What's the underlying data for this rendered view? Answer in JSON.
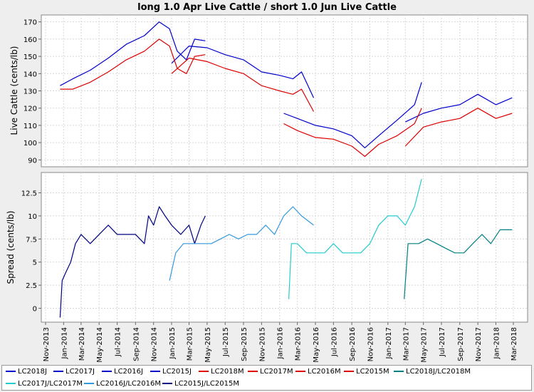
{
  "chart_data": {
    "type": "line",
    "title": "long 1.0 Apr Live Cattle / short 1.0 Jun Live Cattle",
    "x_tick_labels": [
      "Nov-2013",
      "Jan-2014",
      "Mar-2014",
      "May-2014",
      "Jul-2014",
      "Sep-2014",
      "Nov-2014",
      "Jan-2015",
      "Mar-2015",
      "May-2015",
      "Jul-2015",
      "Sep-2015",
      "Nov-2015",
      "Jan-2016",
      "Mar-2016",
      "May-2016",
      "Jul-2016",
      "Sep-2016",
      "Nov-2016",
      "Jan-2017",
      "Mar-2017",
      "May-2017",
      "Jul-2017",
      "Sep-2017",
      "Nov-2017",
      "Jan-2018",
      "Mar-2018"
    ],
    "panels": [
      {
        "ylabel": "Live Cattle (cents/lb)",
        "ylim": [
          86,
          174
        ],
        "y_ticks": [
          90,
          100,
          110,
          120,
          130,
          140,
          150,
          160,
          170
        ],
        "series": [
          {
            "name": "LC2015J",
            "color": "#0000cc",
            "x": [
              "2013-12-20",
              "2014-02-01",
              "2014-04-01",
              "2014-06-01",
              "2014-08-01",
              "2014-10-01",
              "2014-11-20",
              "2014-12-25",
              "2015-01-20",
              "2015-02-20",
              "2015-03-20",
              "2015-04-25"
            ],
            "y": [
              133,
              137,
              142,
              149,
              157,
              162,
              170,
              166,
              153,
              148,
              160,
              159
            ]
          },
          {
            "name": "LC2016J",
            "color": "#0000cc",
            "x": [
              "2015-01-01",
              "2015-03-01",
              "2015-05-01",
              "2015-07-01",
              "2015-09-01",
              "2015-11-01",
              "2016-01-01",
              "2016-02-15",
              "2016-03-15",
              "2016-04-25"
            ],
            "y": [
              146,
              156,
              155,
              151,
              148,
              141,
              139,
              137,
              141,
              126
            ]
          },
          {
            "name": "LC2017J",
            "color": "#0000cc",
            "x": [
              "2016-01-15",
              "2016-03-01",
              "2016-05-01",
              "2016-07-01",
              "2016-09-01",
              "2016-10-15",
              "2016-12-01",
              "2017-02-01",
              "2017-04-01",
              "2017-04-25"
            ],
            "y": [
              117,
              114,
              110,
              108,
              104,
              97,
              104,
              113,
              122,
              135
            ]
          },
          {
            "name": "LC2018J",
            "color": "#0000cc",
            "x": [
              "2017-03-01",
              "2017-05-01",
              "2017-07-01",
              "2017-09-01",
              "2017-11-01",
              "2018-01-01",
              "2018-02-25"
            ],
            "y": [
              112,
              117,
              120,
              122,
              128,
              122,
              126
            ]
          },
          {
            "name": "LC2015M",
            "color": "#dd0000",
            "x": [
              "2013-12-20",
              "2014-02-01",
              "2014-04-01",
              "2014-06-01",
              "2014-08-01",
              "2014-10-01",
              "2014-11-20",
              "2014-12-25",
              "2015-01-20",
              "2015-02-20",
              "2015-03-20",
              "2015-04-25"
            ],
            "y": [
              131,
              131,
              135,
              141,
              148,
              153,
              160,
              156,
              143,
              140,
              150,
              151
            ]
          },
          {
            "name": "LC2016M",
            "color": "#dd0000",
            "x": [
              "2015-01-01",
              "2015-03-01",
              "2015-05-01",
              "2015-07-01",
              "2015-09-01",
              "2015-11-01",
              "2016-01-01",
              "2016-02-15",
              "2016-03-15",
              "2016-04-25"
            ],
            "y": [
              140,
              149,
              147,
              143,
              140,
              133,
              130,
              128,
              131,
              118
            ]
          },
          {
            "name": "LC2017M",
            "color": "#dd0000",
            "x": [
              "2016-01-15",
              "2016-03-01",
              "2016-05-01",
              "2016-07-01",
              "2016-09-01",
              "2016-10-15",
              "2016-12-01",
              "2017-02-01",
              "2017-04-01",
              "2017-04-25"
            ],
            "y": [
              111,
              107,
              103,
              102,
              98,
              92,
              99,
              104,
              111,
              120
            ]
          },
          {
            "name": "LC2018M",
            "color": "#dd0000",
            "x": [
              "2017-03-01",
              "2017-05-01",
              "2017-07-01",
              "2017-09-01",
              "2017-11-01",
              "2018-01-01",
              "2018-02-25"
            ],
            "y": [
              98,
              109,
              112,
              114,
              120,
              114,
              117
            ]
          }
        ]
      },
      {
        "ylabel": "Spread (cents/lb)",
        "ylim": [
          -1.5,
          14.7
        ],
        "y_ticks": [
          0,
          2.5,
          5,
          7.5,
          10,
          12.5
        ],
        "y_tick_labels": [
          "0",
          "2.5",
          "5",
          "7.5",
          "10",
          "12.5"
        ],
        "series": [
          {
            "name": "LC2015J/LC2015M",
            "color": "#000080",
            "x": [
              "2013-12-20",
              "2013-12-27",
              "2014-01-10",
              "2014-01-25",
              "2014-02-10",
              "2014-03-01",
              "2014-04-01",
              "2014-05-01",
              "2014-06-01",
              "2014-07-01",
              "2014-08-01",
              "2014-09-01",
              "2014-10-01",
              "2014-10-15",
              "2014-11-01",
              "2014-11-20",
              "2014-12-10",
              "2015-01-01",
              "2015-02-01",
              "2015-03-01",
              "2015-03-20",
              "2015-04-10",
              "2015-04-25"
            ],
            "y": [
              -1,
              3,
              4,
              5,
              7,
              8,
              7,
              8,
              9,
              8,
              8,
              8,
              7,
              10,
              9,
              11,
              10,
              9,
              8,
              9,
              7,
              9,
              10
            ]
          },
          {
            "name": "LC2016J/LC2016M",
            "color": "#3399dd",
            "x": [
              "2014-12-25",
              "2015-01-15",
              "2015-02-10",
              "2015-03-15",
              "2015-04-15",
              "2015-05-15",
              "2015-06-15",
              "2015-07-15",
              "2015-08-15",
              "2015-09-15",
              "2015-10-15",
              "2015-11-15",
              "2015-12-15",
              "2016-01-15",
              "2016-02-15",
              "2016-03-15",
              "2016-04-25"
            ],
            "y": [
              3,
              6,
              7,
              7,
              7,
              7,
              7.5,
              8,
              7.5,
              8,
              8,
              9,
              8,
              10,
              11,
              10,
              9
            ]
          },
          {
            "name": "LC2017J/LC2017M",
            "color": "#22cccc",
            "x": [
              "2016-02-01",
              "2016-02-10",
              "2016-03-01",
              "2016-04-01",
              "2016-05-01",
              "2016-06-01",
              "2016-07-01",
              "2016-08-01",
              "2016-09-01",
              "2016-10-01",
              "2016-11-01",
              "2016-12-01",
              "2017-01-01",
              "2017-02-01",
              "2017-03-01",
              "2017-04-01",
              "2017-04-25"
            ],
            "y": [
              1,
              7,
              7,
              6,
              6,
              6,
              7,
              6,
              6,
              6,
              7,
              9,
              10,
              10,
              9,
              11,
              14
            ]
          },
          {
            "name": "LC2018J/LC2018M",
            "color": "#008080",
            "x": [
              "2017-02-25",
              "2017-03-10",
              "2017-04-15",
              "2017-05-15",
              "2017-06-15",
              "2017-07-15",
              "2017-08-15",
              "2017-09-15",
              "2017-10-15",
              "2017-11-15",
              "2017-12-15",
              "2018-01-15",
              "2018-02-25"
            ],
            "y": [
              1,
              7,
              7,
              7.5,
              7,
              6.5,
              6,
              6,
              7,
              8,
              7,
              8.5,
              8.5
            ]
          }
        ]
      }
    ],
    "legend": [
      "LC2018J",
      "LC2017J",
      "LC2016J",
      "LC2015J",
      "LC2018M",
      "LC2017M",
      "LC2016M",
      "LC2015M",
      "LC2018J/LC2018M",
      "LC2017J/LC2017M",
      "LC2016J/LC2016M",
      "LC2015J/LC2015M"
    ],
    "legend_colors": [
      "#0000cc",
      "#0000cc",
      "#0000cc",
      "#0000cc",
      "#dd0000",
      "#dd0000",
      "#dd0000",
      "#dd0000",
      "#008080",
      "#22cccc",
      "#3399dd",
      "#000080"
    ],
    "grid": true,
    "legend_position": "bottom"
  }
}
